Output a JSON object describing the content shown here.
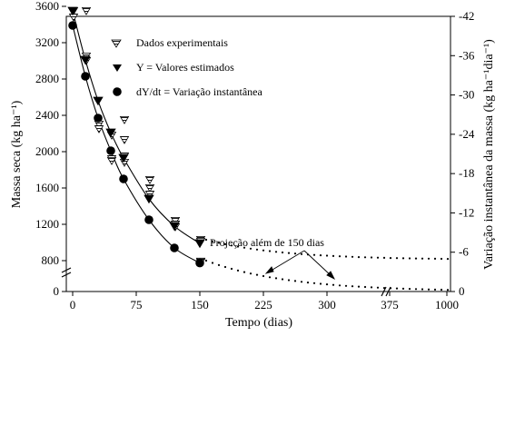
{
  "chart_data": {
    "type": "scatter",
    "xlabel": "Tempo (dias)",
    "ylabel": "Massa seca (kg ha⁻¹)",
    "ylabel_right": "Variação instantânea da massa (kg ha⁻¹dia⁻¹)",
    "x_ticks": [
      0,
      75,
      150,
      225,
      300,
      375,
      1000
    ],
    "y_ticks": [
      0,
      800,
      1200,
      1600,
      2000,
      2400,
      2800,
      3200,
      3600
    ],
    "y_right_ticks": [
      0,
      -6,
      -12,
      -18,
      -24,
      -30,
      -36,
      -42
    ],
    "ylim": [
      0,
      3600
    ],
    "ylim_right": [
      0,
      -42
    ],
    "legend": {
      "position": "top-center",
      "entries": [
        "Dados experimentais",
        "Y = Valores estimados",
        "dY/dt = Variação instantânea"
      ]
    },
    "annotation": "Projeção além de 150 dias",
    "series": [
      {
        "name": "Dados experimentais",
        "marker": "hatched-triangle-down",
        "points": [
          [
            0,
            3550
          ],
          [
            0,
            3480
          ],
          [
            15,
            3550
          ],
          [
            15,
            3050
          ],
          [
            15,
            3000
          ],
          [
            30,
            2300
          ],
          [
            30,
            2250
          ],
          [
            45,
            2180
          ],
          [
            45,
            1920
          ],
          [
            45,
            1900
          ],
          [
            60,
            2350
          ],
          [
            60,
            2130
          ],
          [
            60,
            1950
          ],
          [
            60,
            1880
          ],
          [
            90,
            1690
          ],
          [
            90,
            1600
          ],
          [
            90,
            1530
          ],
          [
            120,
            1240
          ],
          [
            120,
            1200
          ],
          [
            120,
            1170
          ],
          [
            150,
            1030
          ],
          [
            150,
            1010
          ],
          [
            150,
            780
          ],
          [
            150,
            760
          ]
        ]
      },
      {
        "name": "Y = Valores estimados",
        "marker": "filled-triangle-down",
        "points": [
          [
            0,
            3550
          ],
          [
            15,
            3010
          ],
          [
            30,
            2560
          ],
          [
            45,
            2210
          ],
          [
            60,
            1930
          ],
          [
            90,
            1480
          ],
          [
            120,
            1180
          ],
          [
            150,
            990
          ]
        ]
      },
      {
        "name": "dY/dt = Variação instantânea",
        "marker": "filled-circle",
        "points": [
          [
            0,
            3390
          ],
          [
            15,
            2830
          ],
          [
            30,
            2370
          ],
          [
            45,
            2010
          ],
          [
            60,
            1700
          ],
          [
            90,
            1250
          ],
          [
            120,
            940
          ],
          [
            150,
            740
          ]
        ]
      }
    ]
  }
}
